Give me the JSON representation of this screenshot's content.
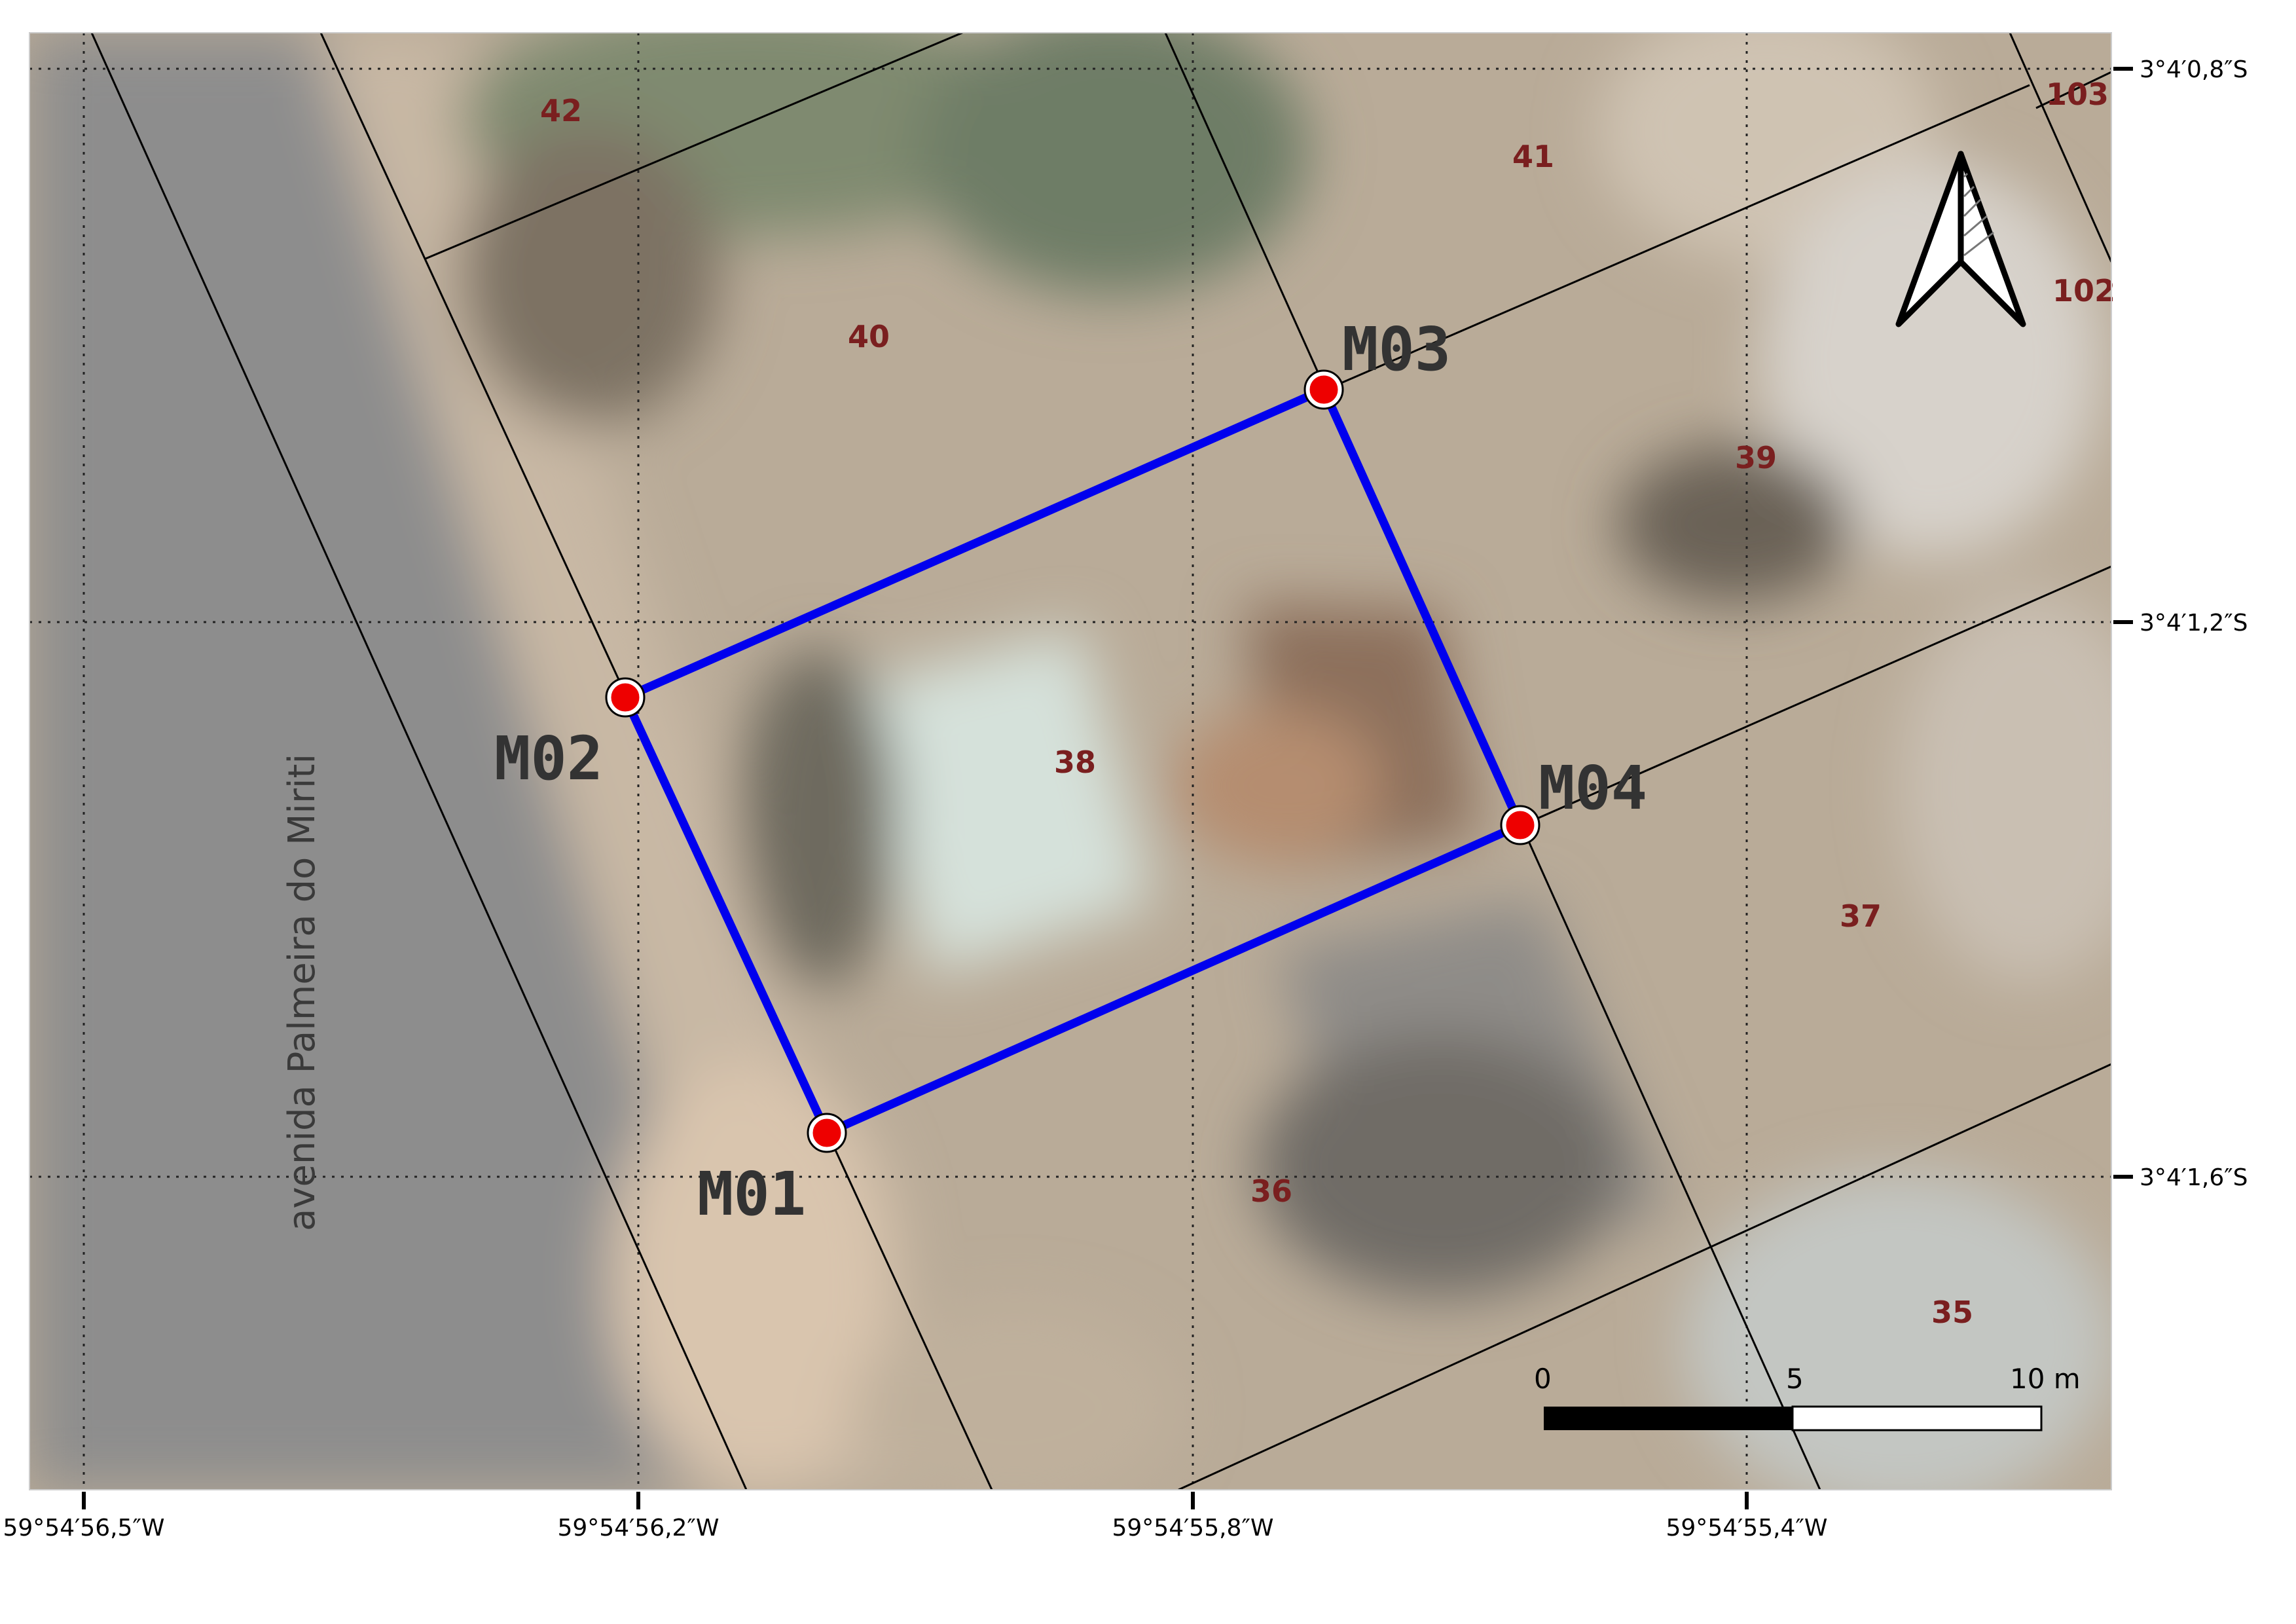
{
  "map": {
    "street_name": "avenida Palmeira do Miriti",
    "lots": [
      "42",
      "41",
      "103",
      "102",
      "40",
      "39",
      "38",
      "37",
      "36",
      "35"
    ],
    "vertices": [
      "M01",
      "M02",
      "M03",
      "M04"
    ],
    "latitude_labels": [
      "3°4′0,8″S",
      "3°4′1,2″S",
      "3°4′1,6″S"
    ],
    "longitude_labels": [
      "59°54′56,5″W",
      "59°54′56,2″W",
      "59°54′55,8″W",
      "59°54′55,4″W"
    ],
    "scale_bar": {
      "labels": [
        "0",
        "5",
        "10 m"
      ]
    },
    "colors": {
      "boundary": "#0000ee",
      "vertex_fill": "#ee0000",
      "lot_label": "#7a1f1f"
    },
    "north_arrow": "north-arrow-icon"
  }
}
